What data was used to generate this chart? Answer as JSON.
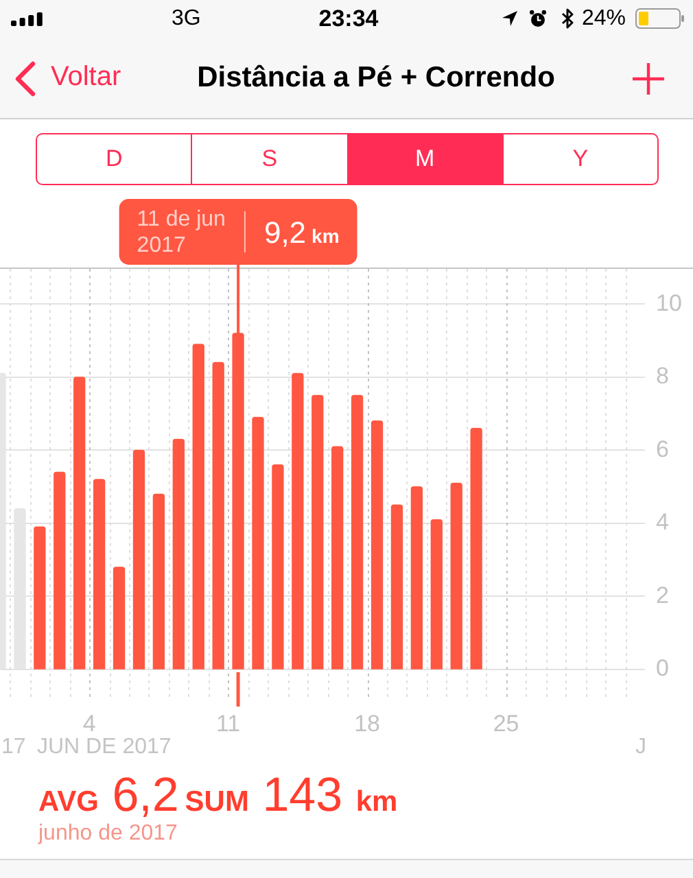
{
  "chart_data": {
    "type": "bar",
    "title": "Distância a Pé + Correndo",
    "series": [
      {
        "color": "#ff5742",
        "x": [
          "2017-06-01T12:00",
          "2017-06-02T12:00",
          "2017-06-03T12:00",
          "2017-06-04T12:00",
          "2017-06-05T12:00",
          "2017-06-06T12:00",
          "2017-06-07T12:00",
          "2017-06-08T12:00",
          "2017-06-09T12:00",
          "2017-06-10T12:00",
          "2017-06-11T12:00",
          "2017-06-12T12:00",
          "2017-06-13T12:00",
          "2017-06-14T12:00",
          "2017-06-15T12:00",
          "2017-06-16T12:00",
          "2017-06-17T12:00",
          "2017-06-18T12:00",
          "2017-06-19T12:00",
          "2017-06-20T12:00",
          "2017-06-21T12:00",
          "2017-06-22T12:00",
          "2017-06-23T12:00"
        ],
        "values": [
          3.9,
          5.4,
          8.0,
          5.2,
          2.8,
          6.0,
          4.8,
          6.3,
          8.9,
          8.4,
          9.2,
          6.9,
          5.6,
          8.1,
          7.5,
          6.1,
          7.5,
          6.8,
          4.5,
          5.0,
          4.1,
          5.1,
          6.6
        ],
        "value_labels": [
          null,
          null,
          null,
          null,
          null,
          null,
          null,
          null,
          null,
          null,
          "9,2 km",
          null,
          null,
          null,
          null,
          null,
          null,
          null,
          null,
          null,
          null,
          null,
          null
        ]
      },
      {
        "color": "#e6e6e6",
        "x": [
          "2017-05-30T12:00",
          "2017-05-31T12:00"
        ],
        "values": [
          8.1,
          4.4
        ]
      }
    ],
    "xlim": [
      "2017-05-30T12:00",
      "2017-07-02"
    ],
    "xticks": [
      {
        "value": "2017-05-31",
        "label": null
      },
      {
        "value": "2017-06-01",
        "label": null
      },
      {
        "value": "2017-06-02",
        "label": null
      },
      {
        "value": "2017-06-03",
        "label": null
      },
      {
        "value": "2017-06-04",
        "label": "4"
      },
      {
        "value": "2017-06-05",
        "label": null
      },
      {
        "value": "2017-06-06",
        "label": null
      },
      {
        "value": "2017-06-07",
        "label": null
      },
      {
        "value": "2017-06-08",
        "label": null
      },
      {
        "value": "2017-06-09",
        "label": null
      },
      {
        "value": "2017-06-10",
        "label": null
      },
      {
        "value": "2017-06-11",
        "label": "11"
      },
      {
        "value": "2017-06-12",
        "label": null
      },
      {
        "value": "2017-06-13",
        "label": null
      },
      {
        "value": "2017-06-14",
        "label": null
      },
      {
        "value": "2017-06-15",
        "label": null
      },
      {
        "value": "2017-06-16",
        "label": null
      },
      {
        "value": "2017-06-17",
        "label": null
      },
      {
        "value": "2017-06-18",
        "label": "18"
      },
      {
        "value": "2017-06-19",
        "label": null
      },
      {
        "value": "2017-06-20",
        "label": null
      },
      {
        "value": "2017-06-21",
        "label": null
      },
      {
        "value": "2017-06-22",
        "label": null
      },
      {
        "value": "2017-06-23",
        "label": null
      },
      {
        "value": "2017-06-24",
        "label": null
      },
      {
        "value": "2017-06-25",
        "label": "25"
      },
      {
        "value": "2017-06-26",
        "label": null
      },
      {
        "value": "2017-06-27",
        "label": null
      },
      {
        "value": "2017-06-28",
        "label": null
      },
      {
        "value": "2017-06-29",
        "label": null
      },
      {
        "value": "2017-06-30",
        "label": null
      },
      {
        "value": "2017-07-01",
        "label": null
      }
    ],
    "ylim": [
      0,
      11
    ],
    "yticks": [
      0,
      2,
      4,
      6,
      8,
      10
    ],
    "grid": true,
    "annotations": [
      "3G",
      "23:34",
      "24%",
      "Voltar",
      "D",
      "S",
      "M",
      "Y",
      {
        "text": "11 de jun 2017",
        "x": "2017-06-11T12:00",
        "y": 9.2
      },
      "17",
      "JUN DE 2017",
      "J",
      "AVG 6,2",
      "SUM 143 km",
      "junho de 2017"
    ]
  }
}
